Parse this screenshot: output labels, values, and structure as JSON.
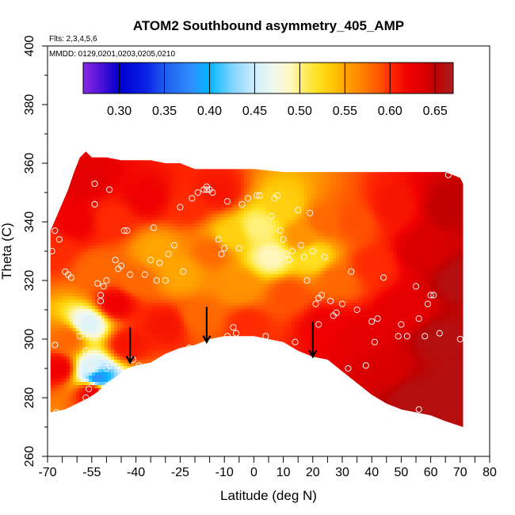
{
  "chart_data": {
    "type": "heatmap",
    "title": "ATOM2 Southbound asymmetry_405_AMP",
    "subtitle_flights": "Flts: 2,3,4,5,6",
    "subtitle_dates": "MMDD: 0129,0201,0203,0205,0210",
    "xlabel": "Latitude (deg N)",
    "ylabel": "Theta (C)",
    "xlim": [
      -70,
      80
    ],
    "ylim": [
      260,
      400
    ],
    "x_ticks": [
      "-70",
      "-55",
      "-40",
      "-25",
      "-10",
      "0",
      "10",
      "20",
      "30",
      "40",
      "50",
      "60",
      "70",
      "80"
    ],
    "x_tick_values": [
      -70,
      -55,
      -40,
      -25,
      -10,
      0,
      10,
      20,
      30,
      40,
      50,
      60,
      70,
      80
    ],
    "y_ticks": [
      "260",
      "280",
      "300",
      "320",
      "340",
      "360",
      "380",
      "400"
    ],
    "y_tick_values": [
      260,
      280,
      300,
      320,
      340,
      360,
      380,
      400
    ],
    "colorbar": {
      "range": [
        0.26,
        0.67
      ],
      "ticks": [
        "0.30",
        "0.35",
        "0.40",
        "0.45",
        "0.50",
        "0.55",
        "0.60",
        "0.65"
      ],
      "tick_values": [
        0.3,
        0.35,
        0.4,
        0.45,
        0.5,
        0.55,
        0.6,
        0.65
      ],
      "stops": [
        {
          "v": 0.26,
          "c": "#8a2be2"
        },
        {
          "v": 0.28,
          "c": "#4b10d8"
        },
        {
          "v": 0.3,
          "c": "#0000cd"
        },
        {
          "v": 0.33,
          "c": "#0a22e8"
        },
        {
          "v": 0.35,
          "c": "#1f5cf0"
        },
        {
          "v": 0.38,
          "c": "#2f8fff"
        },
        {
          "v": 0.4,
          "c": "#00b7ff"
        },
        {
          "v": 0.425,
          "c": "#7fd3ff"
        },
        {
          "v": 0.45,
          "c": "#cfeeff"
        },
        {
          "v": 0.47,
          "c": "#eef8ee"
        },
        {
          "v": 0.49,
          "c": "#fff6c0"
        },
        {
          "v": 0.5,
          "c": "#fff07a"
        },
        {
          "v": 0.52,
          "c": "#ffe020"
        },
        {
          "v": 0.54,
          "c": "#ffc000"
        },
        {
          "v": 0.55,
          "c": "#ffa500"
        },
        {
          "v": 0.57,
          "c": "#ff8000"
        },
        {
          "v": 0.59,
          "c": "#ff5000"
        },
        {
          "v": 0.6,
          "c": "#ff2a00"
        },
        {
          "v": 0.62,
          "c": "#f00000"
        },
        {
          "v": 0.64,
          "c": "#d80000"
        },
        {
          "v": 0.65,
          "c": "#c00000"
        },
        {
          "v": 0.67,
          "c": "#aa2020"
        }
      ]
    },
    "boundary_top": [
      [
        -69,
        337
      ],
      [
        -66,
        344
      ],
      [
        -63,
        351
      ],
      [
        -61,
        357
      ],
      [
        -59,
        362
      ],
      [
        -57,
        364
      ],
      [
        -55,
        362
      ],
      [
        -50,
        362
      ],
      [
        -45,
        361
      ],
      [
        -40,
        361
      ],
      [
        -35,
        361
      ],
      [
        -30,
        360
      ],
      [
        -25,
        360
      ],
      [
        -20,
        358
      ],
      [
        -15,
        358
      ],
      [
        -10,
        358
      ],
      [
        -5,
        358
      ],
      [
        0,
        358
      ],
      [
        10,
        357
      ],
      [
        20,
        357
      ],
      [
        30,
        357
      ],
      [
        40,
        357
      ],
      [
        50,
        357
      ],
      [
        60,
        357
      ],
      [
        65,
        357
      ],
      [
        70,
        355
      ],
      [
        71,
        353
      ]
    ],
    "boundary_bottom": [
      [
        71,
        270
      ],
      [
        65,
        272
      ],
      [
        60,
        274
      ],
      [
        55,
        275
      ],
      [
        50,
        276
      ],
      [
        45,
        278
      ],
      [
        40,
        281
      ],
      [
        35,
        285
      ],
      [
        30,
        289
      ],
      [
        25,
        293
      ],
      [
        20,
        294
      ],
      [
        15,
        296
      ],
      [
        10,
        299
      ],
      [
        5,
        300
      ],
      [
        0,
        301
      ],
      [
        -5,
        301
      ],
      [
        -10,
        301
      ],
      [
        -15,
        300
      ],
      [
        -20,
        298
      ],
      [
        -25,
        297
      ],
      [
        -30,
        295
      ],
      [
        -35,
        292
      ],
      [
        -40,
        291
      ],
      [
        -43,
        290
      ],
      [
        -47,
        287
      ],
      [
        -50,
        285
      ],
      [
        -53,
        282
      ],
      [
        -56,
        280
      ],
      [
        -60,
        278
      ],
      [
        -64,
        276
      ],
      [
        -69,
        275
      ],
      [
        -69,
        298
      ]
    ],
    "field_nodes": [
      {
        "lat": -68,
        "theta": 330,
        "v": 0.6
      },
      {
        "lat": -66,
        "theta": 290,
        "v": 0.62
      },
      {
        "lat": -63,
        "theta": 300,
        "v": 0.58
      },
      {
        "lat": -60,
        "theta": 340,
        "v": 0.62
      },
      {
        "lat": -58,
        "theta": 355,
        "v": 0.63
      },
      {
        "lat": -56,
        "theta": 305,
        "v": 0.46
      },
      {
        "lat": -55,
        "theta": 290,
        "v": 0.46
      },
      {
        "lat": -53,
        "theta": 287,
        "v": 0.38
      },
      {
        "lat": -55,
        "theta": 282,
        "v": 0.62
      },
      {
        "lat": -52,
        "theta": 323,
        "v": 0.58
      },
      {
        "lat": -48,
        "theta": 340,
        "v": 0.6
      },
      {
        "lat": -47,
        "theta": 312,
        "v": 0.62
      },
      {
        "lat": -43,
        "theta": 298,
        "v": 0.61
      },
      {
        "lat": -40,
        "theta": 320,
        "v": 0.58
      },
      {
        "lat": -36,
        "theta": 348,
        "v": 0.62
      },
      {
        "lat": -33,
        "theta": 330,
        "v": 0.55
      },
      {
        "lat": -30,
        "theta": 305,
        "v": 0.61
      },
      {
        "lat": -25,
        "theta": 322,
        "v": 0.55
      },
      {
        "lat": -22,
        "theta": 345,
        "v": 0.6
      },
      {
        "lat": -18,
        "theta": 308,
        "v": 0.58
      },
      {
        "lat": -14,
        "theta": 330,
        "v": 0.58
      },
      {
        "lat": -12,
        "theta": 350,
        "v": 0.61
      },
      {
        "lat": -8,
        "theta": 335,
        "v": 0.53
      },
      {
        "lat": -5,
        "theta": 318,
        "v": 0.56
      },
      {
        "lat": -2,
        "theta": 305,
        "v": 0.6
      },
      {
        "lat": 2,
        "theta": 338,
        "v": 0.5
      },
      {
        "lat": 6,
        "theta": 328,
        "v": 0.49
      },
      {
        "lat": 10,
        "theta": 345,
        "v": 0.53
      },
      {
        "lat": 12,
        "theta": 315,
        "v": 0.59
      },
      {
        "lat": 16,
        "theta": 335,
        "v": 0.56
      },
      {
        "lat": 20,
        "theta": 328,
        "v": 0.52
      },
      {
        "lat": 24,
        "theta": 340,
        "v": 0.58
      },
      {
        "lat": 24,
        "theta": 305,
        "v": 0.62
      },
      {
        "lat": 28,
        "theta": 320,
        "v": 0.58
      },
      {
        "lat": 34,
        "theta": 340,
        "v": 0.59
      },
      {
        "lat": 36,
        "theta": 300,
        "v": 0.63
      },
      {
        "lat": 40,
        "theta": 325,
        "v": 0.6
      },
      {
        "lat": 45,
        "theta": 290,
        "v": 0.64
      },
      {
        "lat": 48,
        "theta": 345,
        "v": 0.61
      },
      {
        "lat": 52,
        "theta": 310,
        "v": 0.63
      },
      {
        "lat": 55,
        "theta": 280,
        "v": 0.66
      },
      {
        "lat": 58,
        "theta": 330,
        "v": 0.64
      },
      {
        "lat": 63,
        "theta": 300,
        "v": 0.66
      },
      {
        "lat": 66,
        "theta": 345,
        "v": 0.65
      },
      {
        "lat": 70,
        "theta": 320,
        "v": 0.66
      },
      {
        "lat": 70,
        "theta": 285,
        "v": 0.66
      }
    ],
    "sample_points": [
      [
        -68.5,
        330
      ],
      [
        -67.5,
        337
      ],
      [
        -67.5,
        298
      ],
      [
        -67,
        275
      ],
      [
        -66,
        334
      ],
      [
        -64,
        323
      ],
      [
        -63,
        322
      ],
      [
        -62,
        321
      ],
      [
        -60,
        306
      ],
      [
        -59,
        301
      ],
      [
        -58,
        308
      ],
      [
        -57,
        296
      ],
      [
        -57,
        280
      ],
      [
        -56,
        283
      ],
      [
        -55,
        290
      ],
      [
        -55,
        293
      ],
      [
        -54,
        346
      ],
      [
        -54,
        353
      ],
      [
        -53,
        319
      ],
      [
        -52,
        313
      ],
      [
        -52,
        315
      ],
      [
        -51,
        318
      ],
      [
        -50,
        320
      ],
      [
        -50,
        290
      ],
      [
        -49,
        351
      ],
      [
        -49,
        291
      ],
      [
        -47,
        327
      ],
      [
        -46,
        324
      ],
      [
        -45,
        325
      ],
      [
        -44,
        337
      ],
      [
        -43,
        337
      ],
      [
        -42,
        322
      ],
      [
        -41,
        293
      ],
      [
        -39,
        291
      ],
      [
        -37,
        322
      ],
      [
        -35,
        327
      ],
      [
        -34,
        338
      ],
      [
        -33,
        320
      ],
      [
        -32,
        326
      ],
      [
        -30,
        320
      ],
      [
        -29,
        329
      ],
      [
        -29,
        294
      ],
      [
        -27,
        332
      ],
      [
        -25,
        345
      ],
      [
        -24,
        323
      ],
      [
        -22,
        297
      ],
      [
        -21,
        348
      ],
      [
        -19,
        350
      ],
      [
        -17,
        351
      ],
      [
        -16,
        351
      ],
      [
        -16,
        352
      ],
      [
        -15,
        351
      ],
      [
        -14,
        350
      ],
      [
        -12,
        334
      ],
      [
        -11,
        329
      ],
      [
        -10,
        331
      ],
      [
        -9,
        301
      ],
      [
        -9,
        347
      ],
      [
        -7,
        304
      ],
      [
        -6,
        302
      ],
      [
        -5,
        331
      ],
      [
        -4,
        346
      ],
      [
        -2,
        348
      ],
      [
        1,
        349
      ],
      [
        2,
        349
      ],
      [
        4,
        301
      ],
      [
        6,
        342
      ],
      [
        7,
        348
      ],
      [
        8,
        349
      ],
      [
        9,
        337
      ],
      [
        10,
        334
      ],
      [
        11,
        329
      ],
      [
        12,
        327
      ],
      [
        13,
        330
      ],
      [
        14,
        299
      ],
      [
        15,
        344
      ],
      [
        16,
        332
      ],
      [
        17,
        328
      ],
      [
        18,
        320
      ],
      [
        19,
        343
      ],
      [
        20,
        330
      ],
      [
        21,
        312
      ],
      [
        22,
        314
      ],
      [
        22,
        305
      ],
      [
        23,
        315
      ],
      [
        24,
        328
      ],
      [
        26,
        313
      ],
      [
        27,
        308
      ],
      [
        28,
        309
      ],
      [
        30,
        312
      ],
      [
        32,
        290
      ],
      [
        33,
        323
      ],
      [
        35,
        310
      ],
      [
        37,
        282
      ],
      [
        38,
        291
      ],
      [
        40,
        306
      ],
      [
        41,
        299
      ],
      [
        42,
        307
      ],
      [
        44,
        321
      ],
      [
        47,
        276
      ],
      [
        49,
        301
      ],
      [
        50,
        305
      ],
      [
        52,
        301
      ],
      [
        55,
        318
      ],
      [
        56,
        276
      ],
      [
        56,
        307
      ],
      [
        58,
        301
      ],
      [
        59,
        312
      ],
      [
        60,
        315
      ],
      [
        61,
        315
      ],
      [
        63,
        302
      ],
      [
        66,
        356
      ],
      [
        70,
        300
      ]
    ],
    "arrows": [
      {
        "lat": -42,
        "theta_from": 304,
        "theta_to": 292
      },
      {
        "lat": -16,
        "theta_from": 311,
        "theta_to": 299
      },
      {
        "lat": 20,
        "theta_from": 306,
        "theta_to": 294
      }
    ]
  }
}
